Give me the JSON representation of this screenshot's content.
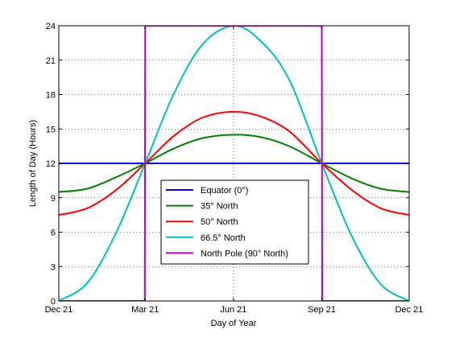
{
  "chart_data": {
    "type": "line",
    "title": "",
    "xlabel": "Day of Year",
    "ylabel": "Length of Day (Hours)",
    "xlim": [
      0,
      365
    ],
    "ylim": [
      0,
      24
    ],
    "x_ticks": [
      {
        "value": 0,
        "label": "Dec 21"
      },
      {
        "value": 90,
        "label": "Mar 21"
      },
      {
        "value": 182,
        "label": "Jun 21"
      },
      {
        "value": 274,
        "label": "Sep 21"
      },
      {
        "value": 365,
        "label": "Dec 21"
      }
    ],
    "y_ticks": [
      0,
      3,
      6,
      9,
      12,
      15,
      18,
      21,
      24
    ],
    "grid": true,
    "legend_position": "lower-center",
    "series": [
      {
        "name": "Equator (0°)",
        "color": "#0000ff",
        "x": [
          0,
          30,
          60,
          90,
          120,
          150,
          182,
          210,
          240,
          274,
          305,
          335,
          365
        ],
        "y": [
          12,
          12,
          12,
          12,
          12,
          12,
          12,
          12,
          12,
          12,
          12,
          12,
          12
        ]
      },
      {
        "name": "35° North",
        "color": "#008000",
        "x": [
          0,
          30,
          60,
          90,
          120,
          150,
          182,
          210,
          240,
          274,
          305,
          335,
          365
        ],
        "y": [
          9.5,
          9.8,
          10.8,
          12,
          13.3,
          14.2,
          14.5,
          14.3,
          13.5,
          12,
          10.7,
          9.8,
          9.5
        ]
      },
      {
        "name": "50° North",
        "color": "#ff0000",
        "x": [
          0,
          30,
          60,
          90,
          120,
          150,
          182,
          210,
          240,
          274,
          305,
          335,
          365
        ],
        "y": [
          7.5,
          8.1,
          9.7,
          12,
          14.4,
          16.0,
          16.5,
          16.1,
          14.8,
          12,
          9.7,
          8.1,
          7.5
        ]
      },
      {
        "name": "66.5° North",
        "color": "#00bfbf",
        "x": [
          0,
          30,
          60,
          90,
          120,
          150,
          182,
          210,
          240,
          274,
          305,
          335,
          365
        ],
        "y": [
          0,
          1.6,
          6.0,
          12,
          18.1,
          22.4,
          24,
          22.7,
          19.3,
          12,
          5.7,
          1.5,
          0
        ]
      },
      {
        "name": "North Pole (90° North)",
        "color": "#bf00bf",
        "x": [
          0,
          89.6,
          90,
          274,
          274.4,
          365
        ],
        "y": [
          0,
          0,
          24,
          24,
          0,
          0
        ]
      }
    ]
  }
}
